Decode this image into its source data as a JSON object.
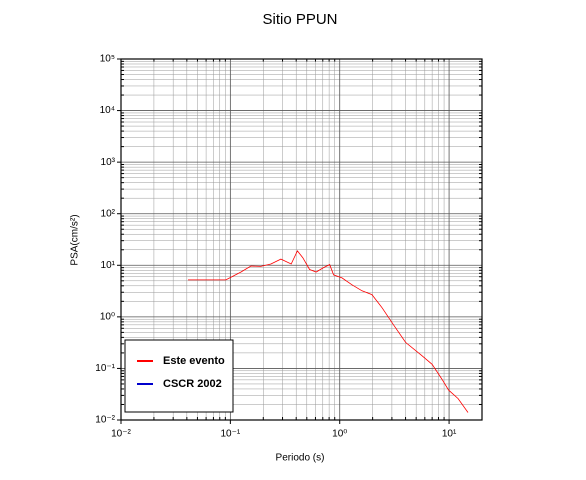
{
  "chart_data": {
    "type": "line",
    "title": "Sitio PPUN",
    "xlabel": "Periodo (s)",
    "ylabel": "PSA(cm/s²)",
    "xscale": "log",
    "yscale": "log",
    "grid": true,
    "minor_grid": true,
    "legend": "lower left",
    "xlim": [
      0.01,
      20
    ],
    "ylim": [
      0.01,
      100000
    ],
    "xticks": [
      {
        "value": 0.01,
        "label": "10⁻²"
      },
      {
        "value": 0.1,
        "label": "10⁻¹"
      },
      {
        "value": 1,
        "label": "10⁰"
      },
      {
        "value": 10,
        "label": "10¹"
      }
    ],
    "yticks": [
      {
        "value": 0.01,
        "label": "10⁻²"
      },
      {
        "value": 0.1,
        "label": "10⁻¹"
      },
      {
        "value": 1,
        "label": "10⁰"
      },
      {
        "value": 10,
        "label": "10¹"
      },
      {
        "value": 100,
        "label": "10²"
      },
      {
        "value": 1000,
        "label": "10³"
      },
      {
        "value": 10000,
        "label": "10⁴"
      },
      {
        "value": 100000,
        "label": "10⁵"
      }
    ],
    "series": [
      {
        "name": "Este evento",
        "color": "#ff0000",
        "x": [
          0.041,
          0.091,
          0.125,
          0.154,
          0.19,
          0.235,
          0.29,
          0.36,
          0.41,
          0.46,
          0.53,
          0.61,
          0.71,
          0.81,
          0.88,
          1.05,
          1.29,
          1.6,
          1.97,
          2.44,
          3.1,
          4.0,
          5.6,
          7.0,
          8.6,
          9.9,
          12.1,
          14.9
        ],
        "values": [
          5.2,
          5.2,
          7.4,
          9.7,
          9.5,
          10.6,
          13.2,
          10.6,
          19,
          14,
          8.3,
          7.4,
          9,
          10.3,
          6.5,
          5.7,
          4.2,
          3.2,
          2.7,
          1.5,
          0.7,
          0.32,
          0.18,
          0.12,
          0.062,
          0.038,
          0.026,
          0.014
        ]
      },
      {
        "name": "CSCR 2002",
        "color": "#0000cc",
        "x": [],
        "values": []
      }
    ]
  }
}
